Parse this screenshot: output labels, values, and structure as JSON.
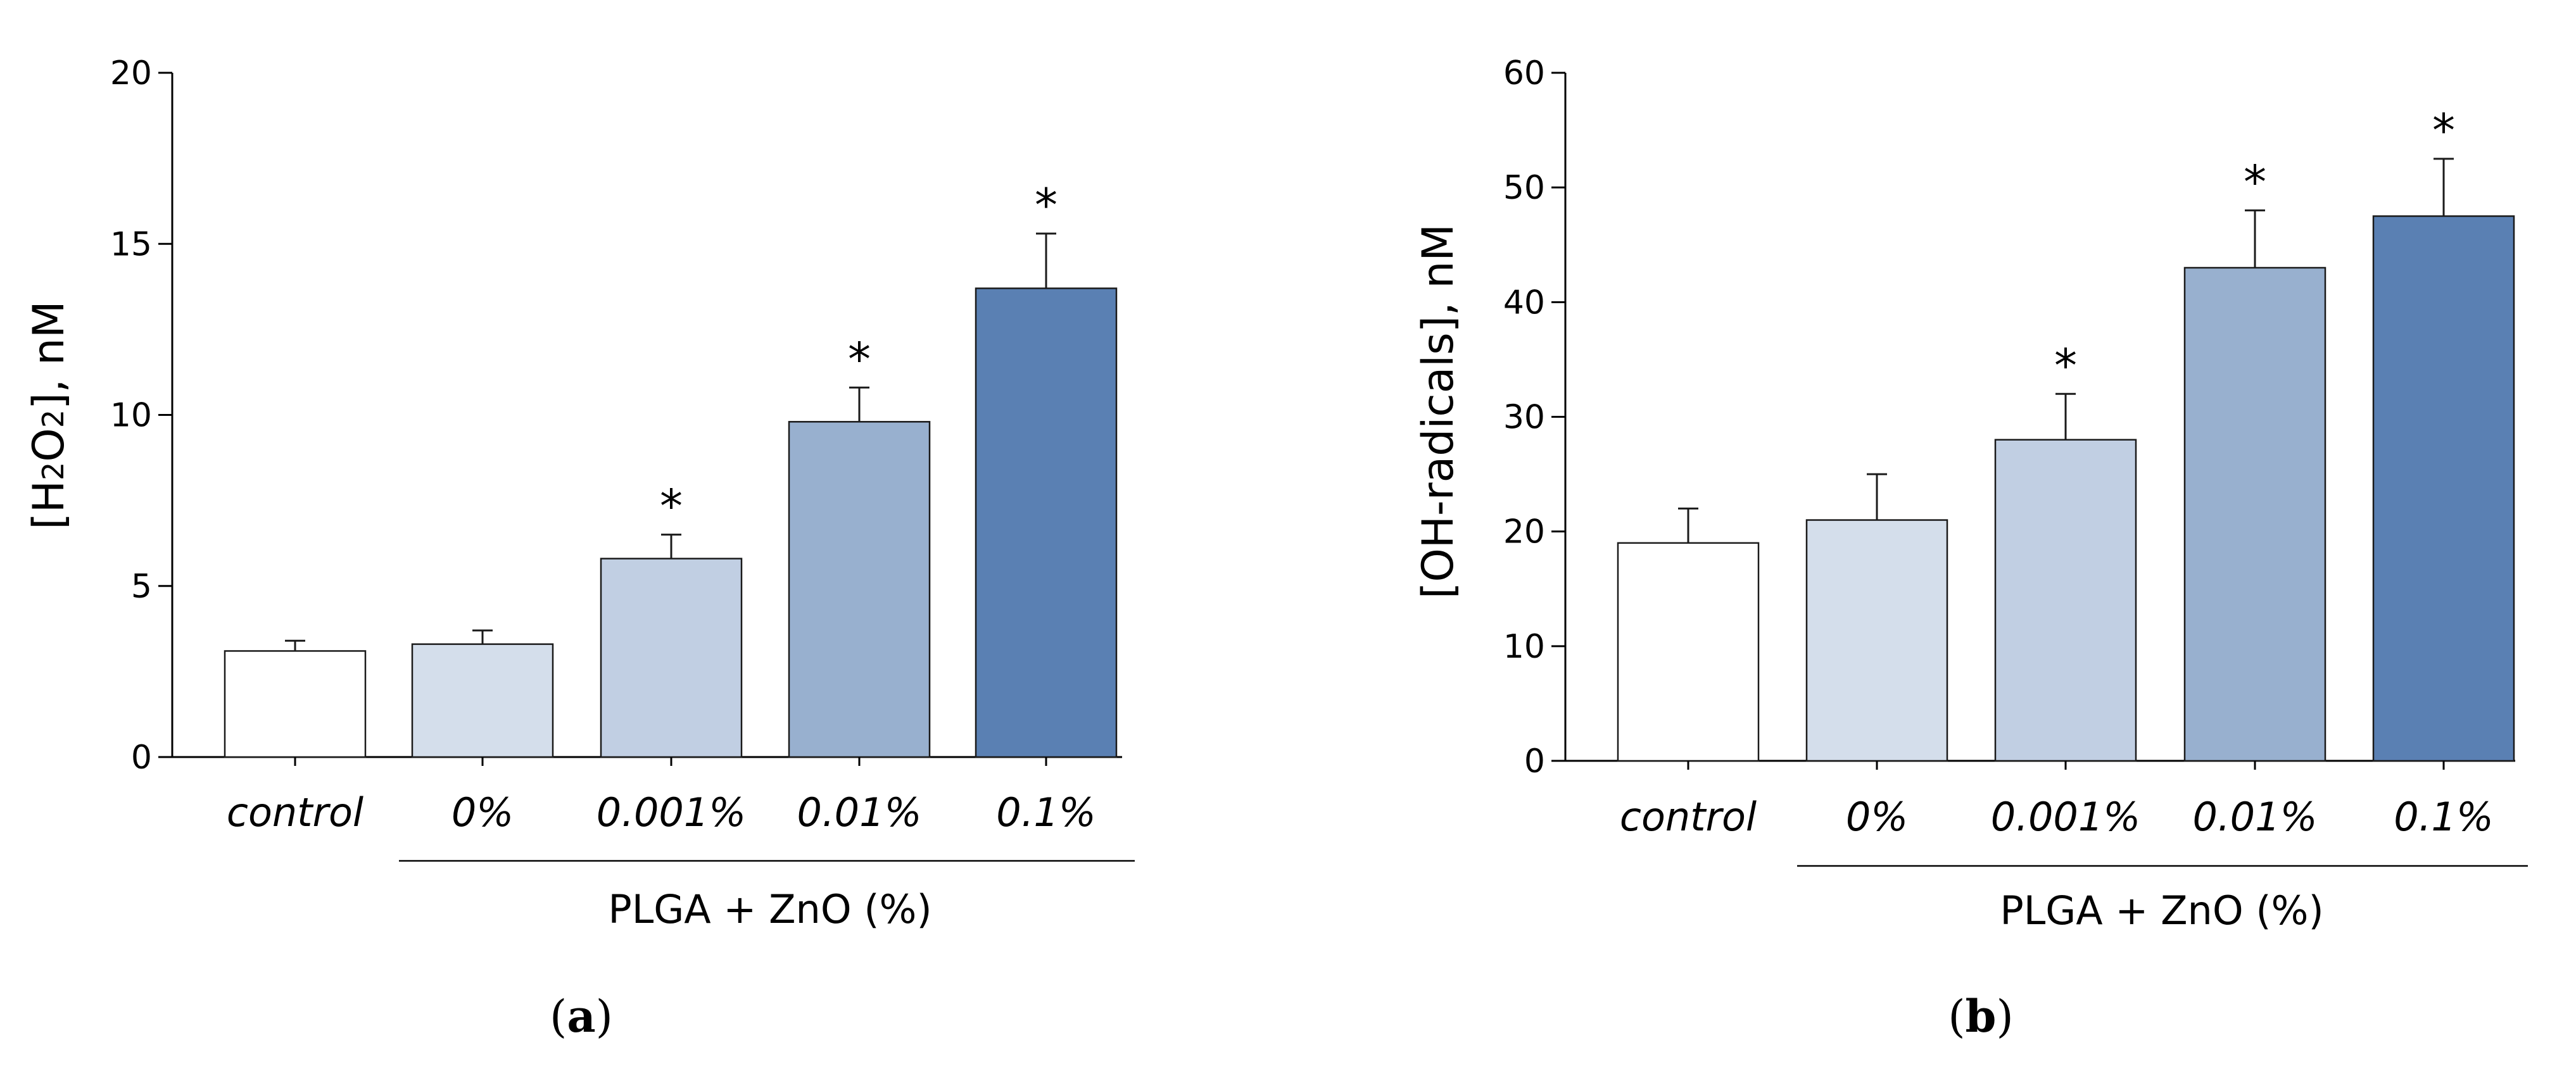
{
  "chart_data": [
    {
      "type": "bar",
      "panel_label": "a",
      "ylabel": "[H2O2], nM",
      "ylabel_parts": [
        "[H",
        "2",
        "O",
        "2",
        "], nM"
      ],
      "ylim": [
        0,
        20
      ],
      "yticks": [
        0,
        5,
        10,
        15,
        20
      ],
      "categories": [
        "control",
        "0%",
        "0.001%",
        "0.01%",
        "0.1%"
      ],
      "values": [
        3.1,
        3.3,
        5.8,
        9.8,
        13.7
      ],
      "errors": [
        0.3,
        0.4,
        0.7,
        1.0,
        1.6
      ],
      "significance": [
        "",
        "",
        "*",
        "*",
        "*"
      ],
      "group_label": "PLGA + ZnO (%)",
      "group_span": [
        1,
        4
      ],
      "colors": [
        "#ffffff",
        "#d4deeb",
        "#c1cfe3",
        "#98b0cf",
        "#5a80b3"
      ]
    },
    {
      "type": "bar",
      "panel_label": "b",
      "ylabel": "[OH-radicals], nM",
      "ylim": [
        0,
        60
      ],
      "yticks": [
        0,
        10,
        20,
        30,
        40,
        50,
        60
      ],
      "categories": [
        "control",
        "0%",
        "0.001%",
        "0.01%",
        "0.1%"
      ],
      "values": [
        19,
        21,
        28,
        43,
        47.5
      ],
      "errors": [
        3,
        4,
        4,
        5,
        5
      ],
      "significance": [
        "",
        "",
        "*",
        "*",
        "*"
      ],
      "group_label": "PLGA + ZnO (%)",
      "group_span": [
        1,
        4
      ],
      "colors": [
        "#ffffff",
        "#d4deeb",
        "#c1cfe3",
        "#98b0cf",
        "#5a80b3"
      ]
    }
  ]
}
